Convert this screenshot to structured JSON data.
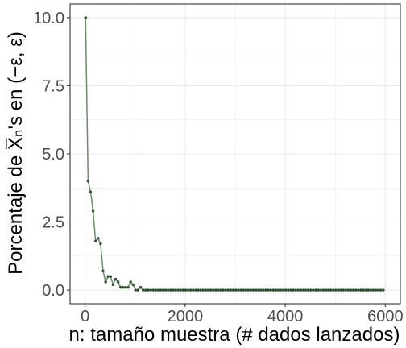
{
  "chart_data": {
    "type": "line",
    "xlabel": "n: tamaño muestra (# dados lanzados)",
    "ylabel": "Porcentaje de X̅ₙ's en (−ε, ε)",
    "xlim": [
      -300,
      6300
    ],
    "ylim": [
      -0.5,
      10.5
    ],
    "x_ticks": [
      0,
      2000,
      4000,
      6000
    ],
    "x_tick_labels": [
      "0",
      "2000",
      "4000",
      "6000"
    ],
    "y_ticks": [
      0,
      2.5,
      5,
      7.5,
      10
    ],
    "y_tick_labels": [
      "0.0",
      "2.5",
      "5.0",
      "7.5",
      "10.0"
    ],
    "grid": true,
    "colors": {
      "line": "#6b8e6b",
      "point": "#2f4f2f",
      "grid": "#ebebeb",
      "panel_border": "#333333"
    },
    "series": [
      {
        "x_start": 10,
        "x_step": 50,
        "x_end": 5960,
        "values": [
          10.0,
          4.0,
          3.6,
          2.9,
          1.8,
          1.9,
          1.7,
          0.7,
          0.3,
          0.5,
          0.5,
          0.2,
          0.4,
          0.3,
          0.1,
          0.1,
          0.1,
          0.1,
          0.3,
          0.2,
          0.0,
          0.0,
          0.1,
          0.0,
          0.0,
          0.0,
          0.0,
          0.0,
          0.0,
          0.0,
          0.0,
          0.0,
          0.0,
          0.0,
          0.0,
          0.0,
          0.0,
          0.0,
          0.0,
          0.0,
          0.0,
          0.0,
          0.0,
          0.0,
          0.0,
          0.0,
          0.0,
          0.0,
          0.0,
          0.0,
          0.0,
          0.0,
          0.0,
          0.0,
          0.0,
          0.0,
          0.0,
          0.0,
          0.0,
          0.0,
          0.0,
          0.0,
          0.0,
          0.0,
          0.0,
          0.0,
          0.0,
          0.0,
          0.0,
          0.0,
          0.0,
          0.0,
          0.0,
          0.0,
          0.0,
          0.0,
          0.0,
          0.0,
          0.0,
          0.0,
          0.0,
          0.0,
          0.0,
          0.0,
          0.0,
          0.0,
          0.0,
          0.0,
          0.0,
          0.0,
          0.0,
          0.0,
          0.0,
          0.0,
          0.0,
          0.0,
          0.0,
          0.0,
          0.0,
          0.0,
          0.0,
          0.0,
          0.0,
          0.0,
          0.0,
          0.0,
          0.0,
          0.0,
          0.0,
          0.0,
          0.0,
          0.0,
          0.0,
          0.0,
          0.0,
          0.0,
          0.0,
          0.0,
          0.0,
          0.0
        ]
      }
    ]
  }
}
